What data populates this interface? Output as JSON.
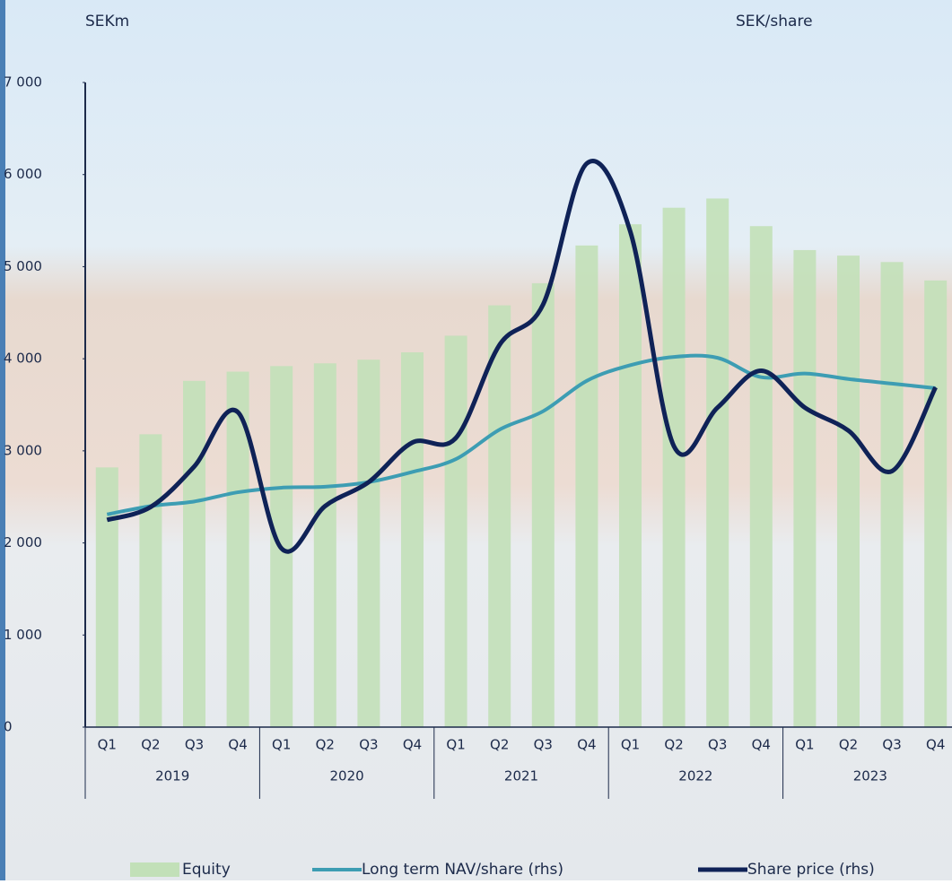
{
  "chart_data": {
    "type": "bar_line",
    "y_label": "SEKm",
    "y2_label": "SEK/share",
    "categories": [
      "Q1",
      "Q2",
      "Q3",
      "Q4",
      "Q1",
      "Q2",
      "Q3",
      "Q4",
      "Q1",
      "Q2",
      "Q3",
      "Q4",
      "Q1",
      "Q2",
      "Q3",
      "Q4",
      "Q1",
      "Q2",
      "Q3",
      "Q4"
    ],
    "category_groups": [
      "2019",
      "2020",
      "2021",
      "2022",
      "2023"
    ],
    "ylim": [
      0,
      7000
    ],
    "yticks": [
      0,
      {
        "value": 1000,
        "label": "1 000"
      },
      {
        "value": 2000,
        "label": "2 000"
      },
      {
        "value": 3000,
        "label": "3 000"
      },
      {
        "value": 4000,
        "label": "4 000"
      },
      {
        "value": 5000,
        "label": "5 000"
      },
      {
        "value": 6000,
        "label": "6 000"
      },
      {
        "value": 7000,
        "label": "7 000"
      }
    ],
    "series": [
      {
        "name": "Equity",
        "type": "bar",
        "color": "#c2e0b8",
        "values": [
          2820,
          3180,
          3760,
          3860,
          3920,
          3950,
          3990,
          4070,
          4250,
          4580,
          4820,
          5230,
          5460,
          5640,
          5740,
          5440,
          5180,
          5120,
          5050,
          4850
        ]
      },
      {
        "name": "Long term NAV/share (rhs)",
        "type": "line",
        "color": "#3d9db3",
        "values": [
          2310,
          2400,
          2450,
          2550,
          2600,
          2610,
          2660,
          2770,
          2910,
          3230,
          3430,
          3760,
          3930,
          4020,
          4010,
          3800,
          3840,
          3780,
          3730,
          3680
        ]
      },
      {
        "name": "Share price (rhs)",
        "type": "line",
        "color": "#0f2257",
        "values": [
          2250,
          2390,
          2830,
          3420,
          1940,
          2400,
          2660,
          3090,
          3140,
          4150,
          4590,
          6120,
          5380,
          3050,
          3470,
          3870,
          3470,
          3220,
          2780,
          3690
        ]
      }
    ]
  }
}
